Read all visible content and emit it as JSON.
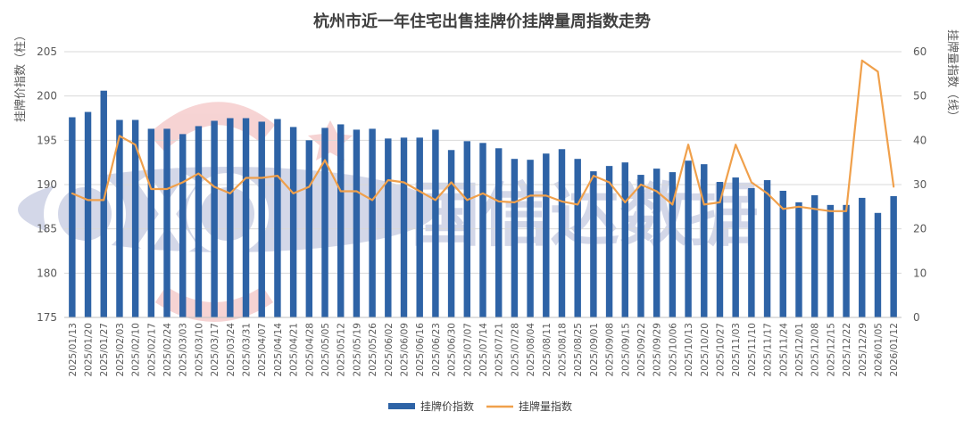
{
  "chart_data": {
    "type": "bar",
    "title": "杭州市近一年住宅出售挂牌价挂牌量周指数走势",
    "ylabel_left": "挂牌价指数（柱）",
    "ylabel_right": "挂牌量指数（线）",
    "y_left_range": [
      175,
      205
    ],
    "y_left_ticks": [
      "175",
      "180",
      "185",
      "190",
      "195",
      "200",
      "205"
    ],
    "y_right_range": [
      0,
      60
    ],
    "y_right_ticks": [
      "0",
      "10",
      "20",
      "30",
      "40",
      "50",
      "60"
    ],
    "grid": true,
    "legend_position": "bottom",
    "categories": [
      "2025/01/13",
      "2025/01/20",
      "2025/01/27",
      "2025/02/03",
      "2025/02/10",
      "2025/02/17",
      "2025/02/24",
      "2025/03/03",
      "2025/03/10",
      "2025/03/17",
      "2025/03/24",
      "2025/03/31",
      "2025/04/07",
      "2025/04/14",
      "2025/04/21",
      "2025/04/28",
      "2025/05/05",
      "2025/05/12",
      "2025/05/19",
      "2025/05/26",
      "2025/06/02",
      "2025/06/09",
      "2025/06/16",
      "2025/06/23",
      "2025/06/30",
      "2025/07/07",
      "2025/07/14",
      "2025/07/21",
      "2025/07/28",
      "2025/08/04",
      "2025/08/11",
      "2025/08/18",
      "2025/08/25",
      "2025/09/01",
      "2025/09/08",
      "2025/09/15",
      "2025/09/22",
      "2025/09/29",
      "2025/10/06",
      "2025/10/13",
      "2025/10/20",
      "2025/10/27",
      "2025/11/03",
      "2025/11/10",
      "2025/11/17",
      "2025/11/24",
      "2025/12/01",
      "2025/12/08",
      "2025/12/15",
      "2025/12/22",
      "2025/12/29",
      "2026/01/05",
      "2026/01/12"
    ],
    "series": [
      {
        "name": "挂牌价指数",
        "type": "bar",
        "axis": "left",
        "color": "#2E63A6",
        "values": [
          197.6,
          198.2,
          200.6,
          197.3,
          197.3,
          196.3,
          196.3,
          195.7,
          196.6,
          197.2,
          197.5,
          197.5,
          197.1,
          197.4,
          196.5,
          195.0,
          196.4,
          196.8,
          196.2,
          196.3,
          195.2,
          195.3,
          195.3,
          196.2,
          193.9,
          194.9,
          194.7,
          194.1,
          192.9,
          192.8,
          193.5,
          194.0,
          192.9,
          191.5,
          192.1,
          192.5,
          191.1,
          191.8,
          191.4,
          192.7,
          192.3,
          190.3,
          190.8,
          189.6,
          190.5,
          189.3,
          188.0,
          188.8,
          187.7,
          187.7,
          188.5,
          186.8,
          188.7
        ]
      },
      {
        "name": "挂牌量指数",
        "type": "line",
        "axis": "right",
        "color": "#F0A04B",
        "values": [
          28,
          26.5,
          26.5,
          41,
          39,
          29,
          29,
          30.5,
          32.5,
          29.5,
          28,
          31.5,
          31.5,
          32,
          28,
          29.5,
          35.5,
          28.5,
          28.5,
          26.5,
          31,
          30.5,
          28.5,
          26.5,
          30.5,
          26.5,
          28,
          26.2,
          26,
          27.5,
          27.5,
          26.2,
          25.5,
          32,
          30.5,
          26,
          30,
          28.5,
          25.5,
          39,
          25.5,
          26,
          39,
          30.5,
          28,
          24.5,
          25,
          24.5,
          24,
          24,
          58,
          55.5,
          29.5
        ]
      }
    ]
  },
  "watermark": {
    "text": "国信达数据"
  }
}
